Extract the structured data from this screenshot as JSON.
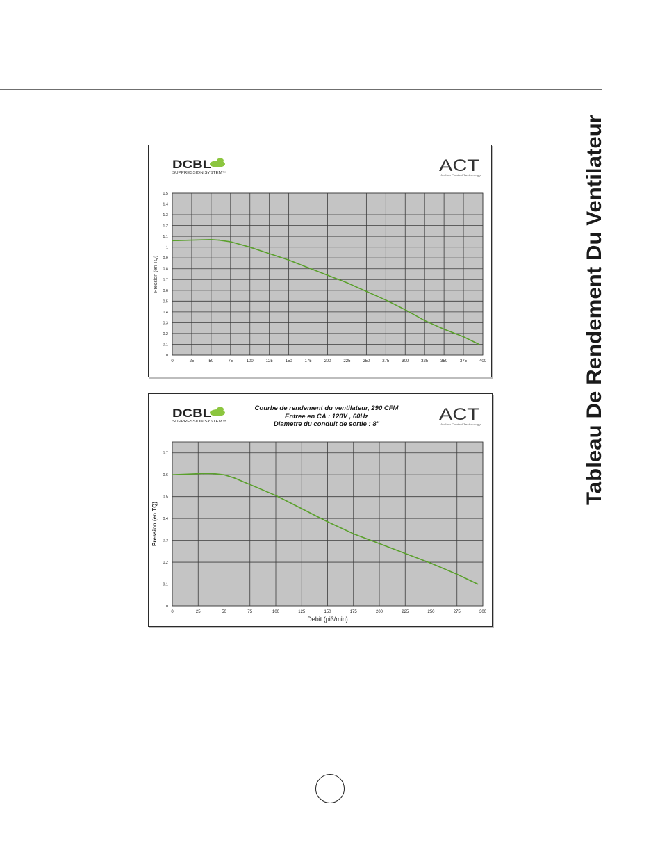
{
  "side_title": "Tableau De Rendement Du Ventilateur",
  "colors": {
    "plot_background": "#c4c4c4",
    "grid": "#3c3c3c",
    "curve": "#5aa02c",
    "brand_leaf": "#8cc63f"
  },
  "chart_data": [
    {
      "type": "line",
      "brand": {
        "left_logo": "DCBL",
        "left_tagline": "SUPPRESSION SYSTEM™",
        "right_logo": "ACT",
        "right_tagline": "Airflow Control Technology"
      },
      "title_lines": [],
      "xlabel": "",
      "ylabel": "Pression (en TQ)",
      "xlim": [
        0,
        400
      ],
      "ylim": [
        0,
        1.5
      ],
      "x_ticks": [
        0,
        25,
        50,
        75,
        100,
        125,
        150,
        175,
        200,
        225,
        250,
        275,
        300,
        325,
        350,
        375,
        400
      ],
      "y_ticks": [
        0,
        0.1,
        0.2,
        0.3,
        0.4,
        0.5,
        0.6,
        0.7,
        0.8,
        0.9,
        1,
        1.1,
        1.2,
        1.3,
        1.4,
        1.5
      ],
      "y_tick_labels": [
        "0",
        "0.1",
        "0.2",
        "0.3",
        "0.4",
        "0.5",
        "0.6",
        "0.7",
        "0.8",
        "0.9",
        "1",
        "1.1",
        "1.2",
        "1.3",
        "1.4",
        "1.5"
      ],
      "grid": true,
      "series": [
        {
          "x": [
            0,
            25,
            50,
            60,
            75,
            100,
            125,
            150,
            175,
            200,
            225,
            250,
            275,
            300,
            325,
            350,
            375,
            395
          ],
          "y": [
            1.06,
            1.065,
            1.07,
            1.065,
            1.05,
            1.0,
            0.94,
            0.88,
            0.81,
            0.74,
            0.67,
            0.59,
            0.51,
            0.42,
            0.32,
            0.24,
            0.17,
            0.1
          ]
        }
      ]
    },
    {
      "type": "line",
      "brand": {
        "left_logo": "DCBL",
        "left_tagline": "SUPPRESSION SYSTEM™",
        "right_logo": "ACT",
        "right_tagline": "Airflow Control Technology"
      },
      "title_lines": [
        "Courbe de rendement du ventilateur, 290 CFM",
        "Entree en CA : 120V , 60Hz",
        "Diametre du conduit de sortie : 8\""
      ],
      "xlabel": "Debit (pi3/min)",
      "ylabel": "Pression (en TQ)",
      "xlim": [
        0,
        300
      ],
      "ylim": [
        0,
        0.75
      ],
      "x_ticks": [
        0,
        25,
        50,
        75,
        100,
        125,
        150,
        175,
        200,
        225,
        250,
        275,
        300
      ],
      "y_ticks": [
        0,
        0.1,
        0.2,
        0.3,
        0.4,
        0.5,
        0.6,
        0.7
      ],
      "y_tick_labels": [
        "0",
        "0.1",
        "0.2",
        "0.3",
        "0.4",
        "0.5",
        "0.6",
        "0.7"
      ],
      "grid": true,
      "series": [
        {
          "x": [
            0,
            15,
            30,
            40,
            50,
            60,
            75,
            100,
            125,
            150,
            175,
            200,
            225,
            250,
            275,
            295
          ],
          "y": [
            0.6,
            0.603,
            0.606,
            0.605,
            0.6,
            0.585,
            0.555,
            0.505,
            0.445,
            0.385,
            0.33,
            0.285,
            0.24,
            0.195,
            0.145,
            0.1
          ]
        }
      ]
    }
  ]
}
